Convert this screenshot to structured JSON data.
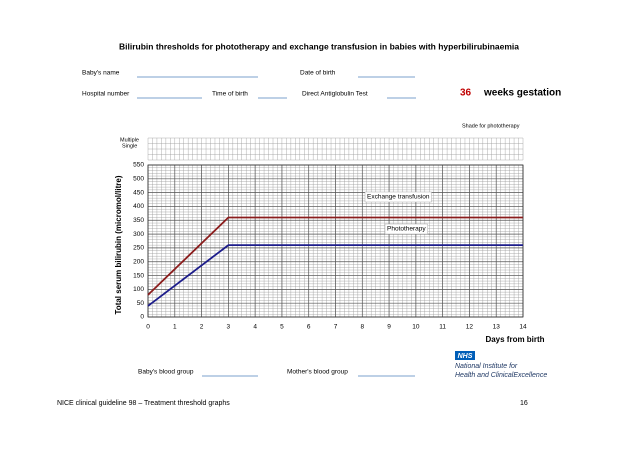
{
  "title": "Bilirubin thresholds for phototherapy and exchange transfusion in babies with hyperbilirubinaemia",
  "form": {
    "babys_name": "Baby's name",
    "date_of_birth": "Date of birth",
    "hospital_number": "Hospital number",
    "time_of_birth": "Time of birth",
    "direct_antiglobulin_test": "Direct Antiglobulin Test",
    "gestation_weeks": 36,
    "gestation_label": "weeks gestation",
    "babys_blood_group": "Baby's blood group",
    "mothers_blood_group": "Mother's blood group"
  },
  "chart_data": {
    "type": "line",
    "shade_label": "Shade for phototherapy",
    "row_labels": [
      "Multiple",
      "Single"
    ],
    "xlabel": "Days from birth",
    "ylabel": "Total serum bilirubin (micromol/litre)",
    "x": [
      0,
      3,
      14
    ],
    "xlim": [
      0,
      14
    ],
    "xticks": [
      0,
      1,
      2,
      3,
      4,
      5,
      6,
      7,
      8,
      9,
      10,
      11,
      12,
      13,
      14
    ],
    "ylim": [
      0,
      550
    ],
    "yticks": [
      0,
      50,
      100,
      150,
      200,
      250,
      300,
      350,
      400,
      450,
      500,
      550
    ],
    "grid": true,
    "series": [
      {
        "name": "Exchange transfusion",
        "color": "#8b1c1c",
        "values": [
          80,
          360,
          360
        ]
      },
      {
        "name": "Phototherapy",
        "color": "#1c1c8b",
        "values": [
          40,
          260,
          260
        ]
      }
    ]
  },
  "logo": {
    "badge": "NHS",
    "line1": "National Institute for",
    "line2": "Health and ClinicalExcellence"
  },
  "footer": {
    "text": "NICE clinical guideline 98 – Treatment threshold graphs",
    "page": "16"
  }
}
